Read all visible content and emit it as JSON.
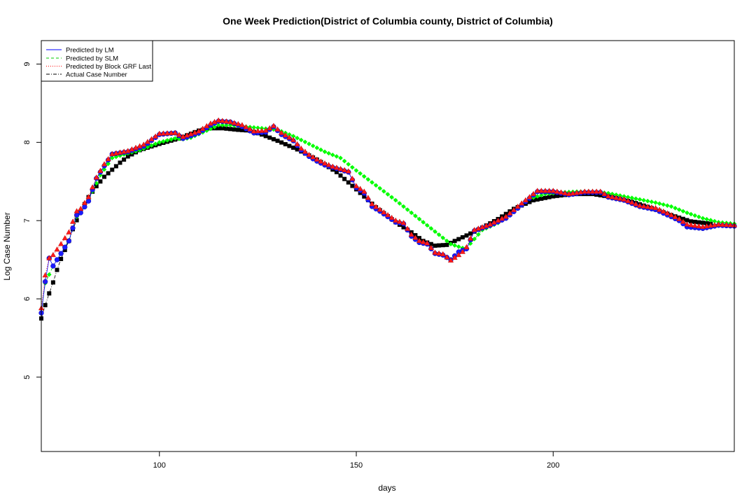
{
  "chart_data": {
    "type": "scatter",
    "title": "One Week Prediction(District of Columbia county, District of Columbia)",
    "xlabel": "days",
    "ylabel": "Log Case Number",
    "xlim": [
      70,
      246
    ],
    "ylim": [
      4.05,
      9.3
    ],
    "x_ticks": [
      100,
      150,
      200
    ],
    "y_ticks": [
      5,
      6,
      7,
      8,
      9
    ],
    "legend_position": "top-left",
    "legend": [
      {
        "label": "Predicted by LM",
        "color": "#0000ff",
        "line": "solid"
      },
      {
        "label": "Predicted by SLM",
        "color": "#00cc00",
        "line": "dashed"
      },
      {
        "label": "Predicted by Block GRF Last",
        "color": "#ff0000",
        "line": "dotted"
      },
      {
        "label": "Actual Case Number",
        "color": "#000000",
        "line": "dashdot"
      }
    ],
    "series": [
      {
        "name": "Actual Case Number",
        "color": "#000000",
        "marker": "square",
        "keypoints": [
          [
            70,
            5.75
          ],
          [
            71,
            5.92
          ],
          [
            72,
            6.07
          ],
          [
            73,
            6.21
          ],
          [
            74,
            6.37
          ],
          [
            75,
            6.51
          ],
          [
            77,
            6.74
          ],
          [
            78,
            6.89
          ],
          [
            80,
            7.12
          ],
          [
            82,
            7.3
          ],
          [
            84,
            7.44
          ],
          [
            86,
            7.56
          ],
          [
            88,
            7.65
          ],
          [
            90,
            7.74
          ],
          [
            92,
            7.82
          ],
          [
            95,
            7.9
          ],
          [
            100,
            7.98
          ],
          [
            105,
            8.05
          ],
          [
            108,
            8.11
          ],
          [
            110,
            8.15
          ],
          [
            113,
            8.18
          ],
          [
            116,
            8.18
          ],
          [
            120,
            8.16
          ],
          [
            123,
            8.15
          ],
          [
            126,
            8.1
          ],
          [
            130,
            8.02
          ],
          [
            135,
            7.91
          ],
          [
            140,
            7.78
          ],
          [
            145,
            7.62
          ],
          [
            150,
            7.4
          ],
          [
            155,
            7.17
          ],
          [
            160,
            6.98
          ],
          [
            164,
            6.85
          ],
          [
            167,
            6.74
          ],
          [
            170,
            6.68
          ],
          [
            173,
            6.69
          ],
          [
            175,
            6.74
          ],
          [
            178,
            6.81
          ],
          [
            182,
            6.91
          ],
          [
            186,
            7.02
          ],
          [
            190,
            7.15
          ],
          [
            195,
            7.26
          ],
          [
            200,
            7.31
          ],
          [
            205,
            7.34
          ],
          [
            210,
            7.34
          ],
          [
            215,
            7.3
          ],
          [
            220,
            7.24
          ],
          [
            225,
            7.16
          ],
          [
            230,
            7.07
          ],
          [
            235,
            6.99
          ],
          [
            240,
            6.96
          ]
        ]
      },
      {
        "name": "Predicted by SLM",
        "color": "#00ff00",
        "marker": "diamond",
        "keypoints": [
          [
            70,
            5.82
          ],
          [
            71,
            6.2
          ],
          [
            73,
            6.42
          ],
          [
            75,
            6.58
          ],
          [
            77,
            6.75
          ],
          [
            79,
            7.05
          ],
          [
            80,
            7.1
          ],
          [
            82,
            7.27
          ],
          [
            85,
            7.58
          ],
          [
            88,
            7.8
          ],
          [
            92,
            7.86
          ],
          [
            95,
            7.9
          ],
          [
            100,
            8.0
          ],
          [
            104,
            8.05
          ],
          [
            106,
            8.04
          ],
          [
            108,
            8.06
          ],
          [
            112,
            8.15
          ],
          [
            115,
            8.22
          ],
          [
            118,
            8.22
          ],
          [
            122,
            8.2
          ],
          [
            126,
            8.18
          ],
          [
            130,
            8.16
          ],
          [
            134,
            8.08
          ],
          [
            138,
            7.98
          ],
          [
            142,
            7.88
          ],
          [
            146,
            7.8
          ],
          [
            150,
            7.64
          ],
          [
            155,
            7.45
          ],
          [
            160,
            7.26
          ],
          [
            165,
            7.06
          ],
          [
            170,
            6.86
          ],
          [
            174,
            6.7
          ],
          [
            177,
            6.65
          ],
          [
            178,
            6.65
          ],
          [
            182,
            6.88
          ],
          [
            186,
            6.97
          ],
          [
            190,
            7.12
          ],
          [
            194,
            7.28
          ],
          [
            198,
            7.34
          ],
          [
            202,
            7.36
          ],
          [
            206,
            7.37
          ],
          [
            210,
            7.37
          ],
          [
            214,
            7.35
          ],
          [
            218,
            7.31
          ],
          [
            222,
            7.27
          ],
          [
            226,
            7.23
          ],
          [
            230,
            7.18
          ],
          [
            234,
            7.1
          ],
          [
            238,
            7.03
          ],
          [
            242,
            6.98
          ],
          [
            246,
            6.96
          ]
        ]
      },
      {
        "name": "Predicted by LM",
        "color": "#0000ff",
        "marker": "circle",
        "keypoints": [
          [
            70,
            5.82
          ],
          [
            71,
            6.22
          ],
          [
            72,
            6.52
          ],
          [
            73,
            6.42
          ],
          [
            75,
            6.58
          ],
          [
            77,
            6.74
          ],
          [
            79,
            7.07
          ],
          [
            80,
            7.1
          ],
          [
            82,
            7.25
          ],
          [
            84,
            7.54
          ],
          [
            86,
            7.7
          ],
          [
            88,
            7.85
          ],
          [
            92,
            7.88
          ],
          [
            96,
            7.95
          ],
          [
            100,
            8.1
          ],
          [
            104,
            8.12
          ],
          [
            106,
            8.05
          ],
          [
            110,
            8.12
          ],
          [
            113,
            8.22
          ],
          [
            115,
            8.27
          ],
          [
            118,
            8.26
          ],
          [
            121,
            8.2
          ],
          [
            124,
            8.12
          ],
          [
            127,
            8.13
          ],
          [
            129,
            8.2
          ],
          [
            131,
            8.1
          ],
          [
            134,
            8.02
          ],
          [
            136,
            7.9
          ],
          [
            138,
            7.82
          ],
          [
            140,
            7.76
          ],
          [
            142,
            7.71
          ],
          [
            144,
            7.68
          ],
          [
            146,
            7.65
          ],
          [
            148,
            7.62
          ],
          [
            150,
            7.42
          ],
          [
            152,
            7.35
          ],
          [
            154,
            7.18
          ],
          [
            156,
            7.12
          ],
          [
            158,
            7.05
          ],
          [
            160,
            6.98
          ],
          [
            162,
            6.96
          ],
          [
            164,
            6.8
          ],
          [
            166,
            6.72
          ],
          [
            168,
            6.7
          ],
          [
            170,
            6.58
          ],
          [
            172,
            6.56
          ],
          [
            174,
            6.5
          ],
          [
            176,
            6.6
          ],
          [
            177,
            6.62
          ],
          [
            178,
            6.64
          ],
          [
            180,
            6.87
          ],
          [
            184,
            6.94
          ],
          [
            188,
            7.03
          ],
          [
            192,
            7.2
          ],
          [
            196,
            7.37
          ],
          [
            200,
            7.37
          ],
          [
            204,
            7.33
          ],
          [
            208,
            7.36
          ],
          [
            212,
            7.36
          ],
          [
            214,
            7.3
          ],
          [
            218,
            7.26
          ],
          [
            222,
            7.18
          ],
          [
            226,
            7.14
          ],
          [
            230,
            7.05
          ],
          [
            232,
            7.0
          ],
          [
            234,
            6.92
          ],
          [
            238,
            6.9
          ],
          [
            242,
            6.94
          ],
          [
            246,
            6.93
          ]
        ]
      },
      {
        "name": "Predicted by Block GRF Last",
        "color": "#ff0000",
        "marker": "triangle",
        "keypoints": [
          [
            70,
            5.88
          ],
          [
            71,
            6.3
          ],
          [
            72,
            6.52
          ],
          [
            73,
            6.56
          ],
          [
            75,
            6.7
          ],
          [
            77,
            6.85
          ],
          [
            79,
            7.12
          ],
          [
            80,
            7.15
          ],
          [
            82,
            7.3
          ],
          [
            84,
            7.55
          ],
          [
            86,
            7.72
          ],
          [
            88,
            7.85
          ],
          [
            92,
            7.89
          ],
          [
            96,
            7.97
          ],
          [
            100,
            8.11
          ],
          [
            104,
            8.12
          ],
          [
            106,
            8.07
          ],
          [
            110,
            8.14
          ],
          [
            113,
            8.24
          ],
          [
            115,
            8.28
          ],
          [
            118,
            8.26
          ],
          [
            121,
            8.22
          ],
          [
            124,
            8.14
          ],
          [
            127,
            8.15
          ],
          [
            129,
            8.21
          ],
          [
            131,
            8.12
          ],
          [
            134,
            8.03
          ],
          [
            136,
            7.92
          ],
          [
            138,
            7.84
          ],
          [
            140,
            7.78
          ],
          [
            142,
            7.73
          ],
          [
            144,
            7.69
          ],
          [
            146,
            7.66
          ],
          [
            148,
            7.63
          ],
          [
            150,
            7.44
          ],
          [
            152,
            7.37
          ],
          [
            154,
            7.21
          ],
          [
            156,
            7.14
          ],
          [
            158,
            7.07
          ],
          [
            160,
            7.0
          ],
          [
            162,
            6.97
          ],
          [
            164,
            6.82
          ],
          [
            166,
            6.74
          ],
          [
            168,
            6.71
          ],
          [
            170,
            6.59
          ],
          [
            172,
            6.57
          ],
          [
            174,
            6.49
          ],
          [
            176,
            6.56
          ],
          [
            177,
            6.6
          ],
          [
            178,
            6.66
          ],
          [
            180,
            6.88
          ],
          [
            184,
            6.95
          ],
          [
            188,
            7.05
          ],
          [
            192,
            7.22
          ],
          [
            196,
            7.38
          ],
          [
            200,
            7.38
          ],
          [
            204,
            7.34
          ],
          [
            208,
            7.37
          ],
          [
            212,
            7.37
          ],
          [
            214,
            7.31
          ],
          [
            218,
            7.27
          ],
          [
            222,
            7.19
          ],
          [
            226,
            7.16
          ],
          [
            230,
            7.07
          ],
          [
            232,
            7.02
          ],
          [
            234,
            6.95
          ],
          [
            238,
            6.92
          ],
          [
            242,
            6.95
          ],
          [
            246,
            6.94
          ]
        ]
      }
    ]
  }
}
